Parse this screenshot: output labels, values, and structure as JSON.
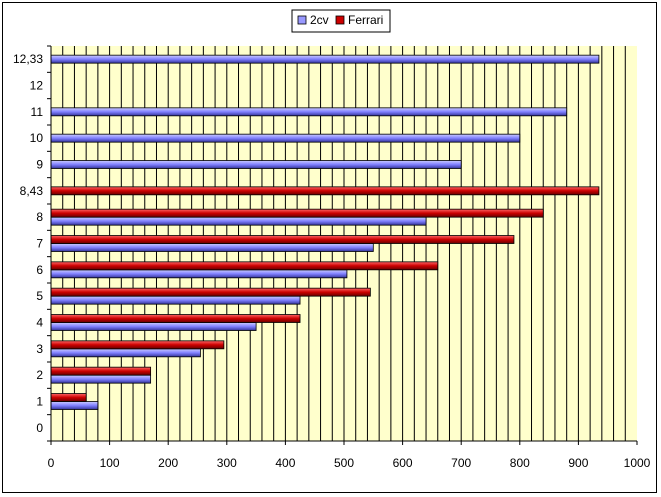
{
  "chart_data": {
    "type": "bar",
    "orientation": "horizontal",
    "categories": [
      "0",
      "1",
      "2",
      "3",
      "4",
      "5",
      "6",
      "7",
      "8",
      "8,43",
      "9",
      "10",
      "11",
      "12",
      "12,33"
    ],
    "series": [
      {
        "name": "2cv",
        "color": "#9999ff",
        "values": [
          0,
          80,
          170,
          255,
          350,
          425,
          505,
          550,
          640,
          null,
          700,
          800,
          880,
          null,
          935
        ]
      },
      {
        "name": "Ferrari",
        "color": "#cc0000",
        "values": [
          0,
          60,
          170,
          295,
          425,
          545,
          660,
          790,
          840,
          935,
          null,
          null,
          null,
          null,
          null
        ]
      }
    ],
    "xlim": [
      0,
      1000
    ],
    "xticks": [
      "0",
      "100",
      "200",
      "300",
      "400",
      "500",
      "600",
      "700",
      "800",
      "900",
      "1000"
    ],
    "plot_background": "#ffffcc",
    "grid": true,
    "legend": "top-center"
  }
}
